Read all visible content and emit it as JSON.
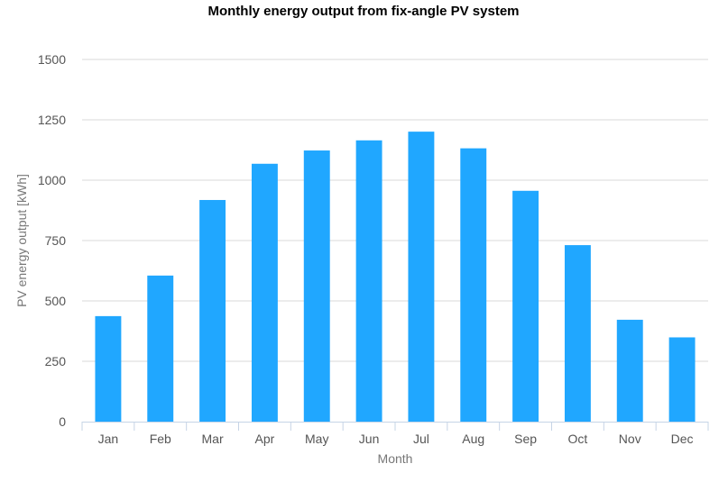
{
  "chart_data": {
    "type": "bar",
    "title": "Monthly energy output from fix-angle PV system",
    "xlabel": "Month",
    "ylabel": "PV energy output [kWh]",
    "categories": [
      "Jan",
      "Feb",
      "Mar",
      "Apr",
      "May",
      "Jun",
      "Jul",
      "Aug",
      "Sep",
      "Oct",
      "Nov",
      "Dec"
    ],
    "values": [
      437,
      605,
      918,
      1068,
      1123,
      1165,
      1201,
      1132,
      956,
      731,
      422,
      349
    ],
    "ylim": [
      0,
      1500
    ],
    "yticks": [
      0,
      250,
      500,
      750,
      1000,
      1250,
      1500
    ],
    "grid": true,
    "bar_color": "#20a7ff",
    "legend": "none"
  }
}
